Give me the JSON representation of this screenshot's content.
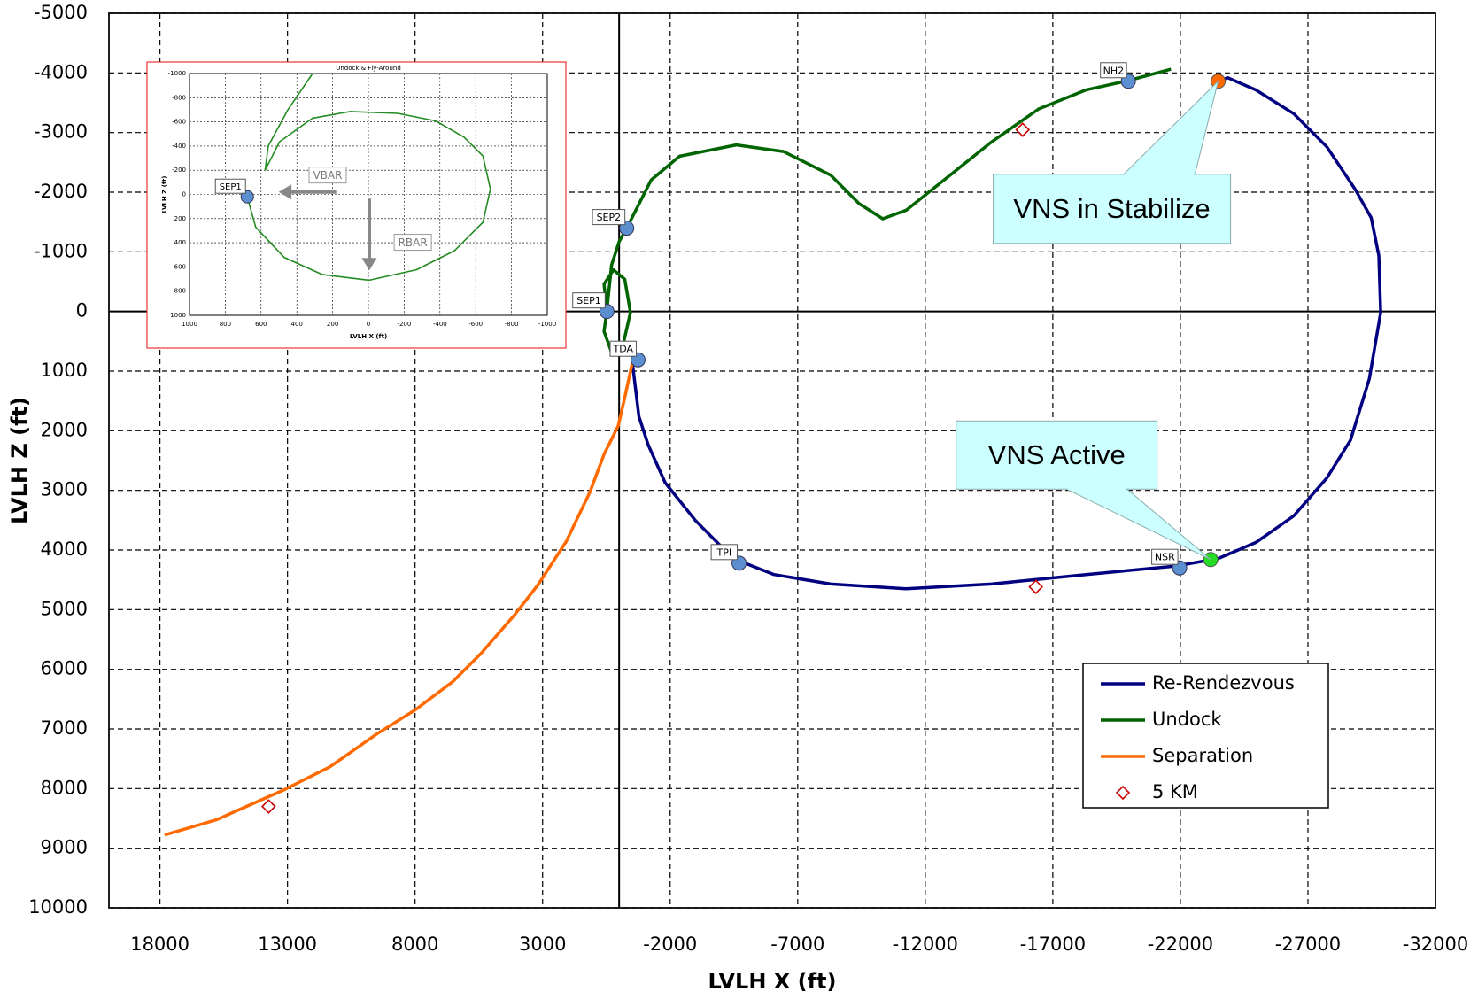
{
  "chart_data": [
    {
      "type": "line",
      "xlabel": "LVLH X (ft)",
      "ylabel": "LVLH Z (ft)",
      "xlim": [
        20000,
        -32000
      ],
      "xticks": [
        18000,
        13000,
        8000,
        3000,
        -2000,
        -7000,
        -12000,
        -17000,
        -22000,
        -27000,
        -32000
      ],
      "ylim": [
        -5000,
        10000
      ],
      "yticks": [
        -5000,
        -4000,
        -3000,
        -2000,
        -1000,
        0,
        1000,
        2000,
        3000,
        4000,
        5000,
        6000,
        7000,
        8000,
        9000,
        10000
      ],
      "grid": true,
      "zero_lines": true,
      "legend": "lower right",
      "series": [
        {
          "name": "Re-Rendezvous",
          "color": "#000080",
          "x": [
            -518,
            -774,
            -1141,
            -1807,
            -2993,
            -4474,
            -6074,
            -8296,
            -11259,
            -14593,
            -18296,
            -21815,
            -23481,
            -24963,
            -26444,
            -27741,
            -28667,
            -29407,
            -29852,
            -29778,
            -29481,
            -28852,
            -27741,
            -26444,
            -24963,
            -23852,
            -23481
          ],
          "y": [
            857,
            1762,
            2238,
            2873,
            3507,
            4142,
            4412,
            4571,
            4650,
            4571,
            4412,
            4269,
            4142,
            3872,
            3428,
            2793,
            2158,
            1127,
            16,
            -936,
            -1571,
            -2047,
            -2761,
            -3317,
            -3714,
            -3920,
            -3857
          ]
        },
        {
          "name": "Undock",
          "color": "#006400",
          "x": [
            480,
            593,
            222,
            -222,
            -444,
            -148,
            296,
            593,
            480,
            296,
            0,
            -296,
            -1259,
            -2370,
            -4593,
            -6444,
            -8296,
            -9407,
            -10333,
            -11259,
            -12741,
            -14593,
            -16444,
            -18296,
            -19963,
            -21630
          ],
          "y": [
            -16,
            -460,
            -698,
            -540,
            16,
            571,
            682,
            333,
            -16,
            -778,
            -1174,
            -1397,
            -2206,
            -2603,
            -2793,
            -2682,
            -2285,
            -1809,
            -1555,
            -1698,
            -2206,
            -2841,
            -3396,
            -3714,
            -3872,
            -4063
          ]
        },
        {
          "name": "Separation",
          "color": "#ff6a00",
          "x": [
            17815,
            15778,
            13185,
            11333,
            9481,
            8000,
            6518,
            5407,
            4111,
            3185,
            2074,
            1148,
            593,
            37,
            -222,
            -518
          ],
          "y": [
            8777,
            8523,
            8031,
            7634,
            7079,
            6682,
            6206,
            5730,
            5095,
            4587,
            3857,
            3031,
            2396,
            1920,
            1444,
            857
          ]
        },
        {
          "name": "5 KM",
          "color": "#cc0000",
          "mark": "diamond",
          "x": [
            -15815,
            -16333,
            13740
          ],
          "y": [
            -3047,
            4618,
            8300
          ]
        }
      ],
      "labelled_points": [
        {
          "text": "SEP1",
          "x": 480,
          "y": 0
        },
        {
          "text": "SEP2",
          "x": -296,
          "y": -1397
        },
        {
          "text": "TDA",
          "x": -740,
          "y": 810
        },
        {
          "text": "TPI",
          "x": -4700,
          "y": 4220
        },
        {
          "text": "NSR",
          "x": -21970,
          "y": 4300
        },
        {
          "text": "NH2",
          "x": -19960,
          "y": -3860
        }
      ],
      "point_color": "#5b8fd0",
      "event_points": [
        {
          "x": -23480,
          "y": -3860,
          "color": "#ff6a00"
        },
        {
          "x": -23190,
          "y": 4160,
          "color": "#22dd22"
        }
      ],
      "callouts": [
        {
          "text": "VNS in Stabilize",
          "x": -23480,
          "y": -3860
        },
        {
          "text": "VNS Active",
          "x": -23190,
          "y": 4160
        }
      ]
    },
    {
      "type": "line",
      "title": "Undock & Fly-Around",
      "xlabel": "LVLH X (ft)",
      "ylabel": "LVLH Z (ft)",
      "xlim": [
        1000,
        -1000
      ],
      "xticks": [
        1000,
        800,
        600,
        400,
        200,
        0,
        -200,
        -400,
        -600,
        -800,
        -1000
      ],
      "ylim": [
        -1000,
        1000
      ],
      "yticks": [
        -1000,
        -800,
        -600,
        -400,
        -200,
        0,
        200,
        400,
        600,
        800,
        1000
      ],
      "grid": true,
      "series": [
        {
          "name": "Undock",
          "color": "#228b22",
          "x": [
            677,
            630,
            471,
            259,
            -5,
            -270,
            -481,
            -640,
            -682,
            -640,
            -534,
            -376,
            -164,
            101,
            312,
            497,
            577,
            560,
            450,
            312
          ],
          "y": [
            20,
            270,
            521,
            662,
            710,
            623,
            466,
            231,
            -43,
            -318,
            -474,
            -608,
            -670,
            -686,
            -631,
            -435,
            -200,
            -400,
            -700,
            -1000
          ]
        }
      ],
      "labelled_points": [
        {
          "text": "SEP1",
          "x": 677,
          "y": 20
        }
      ],
      "arrow_labels": [
        {
          "text": "VBAR",
          "x": 312,
          "y": -160
        },
        {
          "text": "RBAR",
          "x": -164,
          "y": 396
        }
      ]
    }
  ]
}
